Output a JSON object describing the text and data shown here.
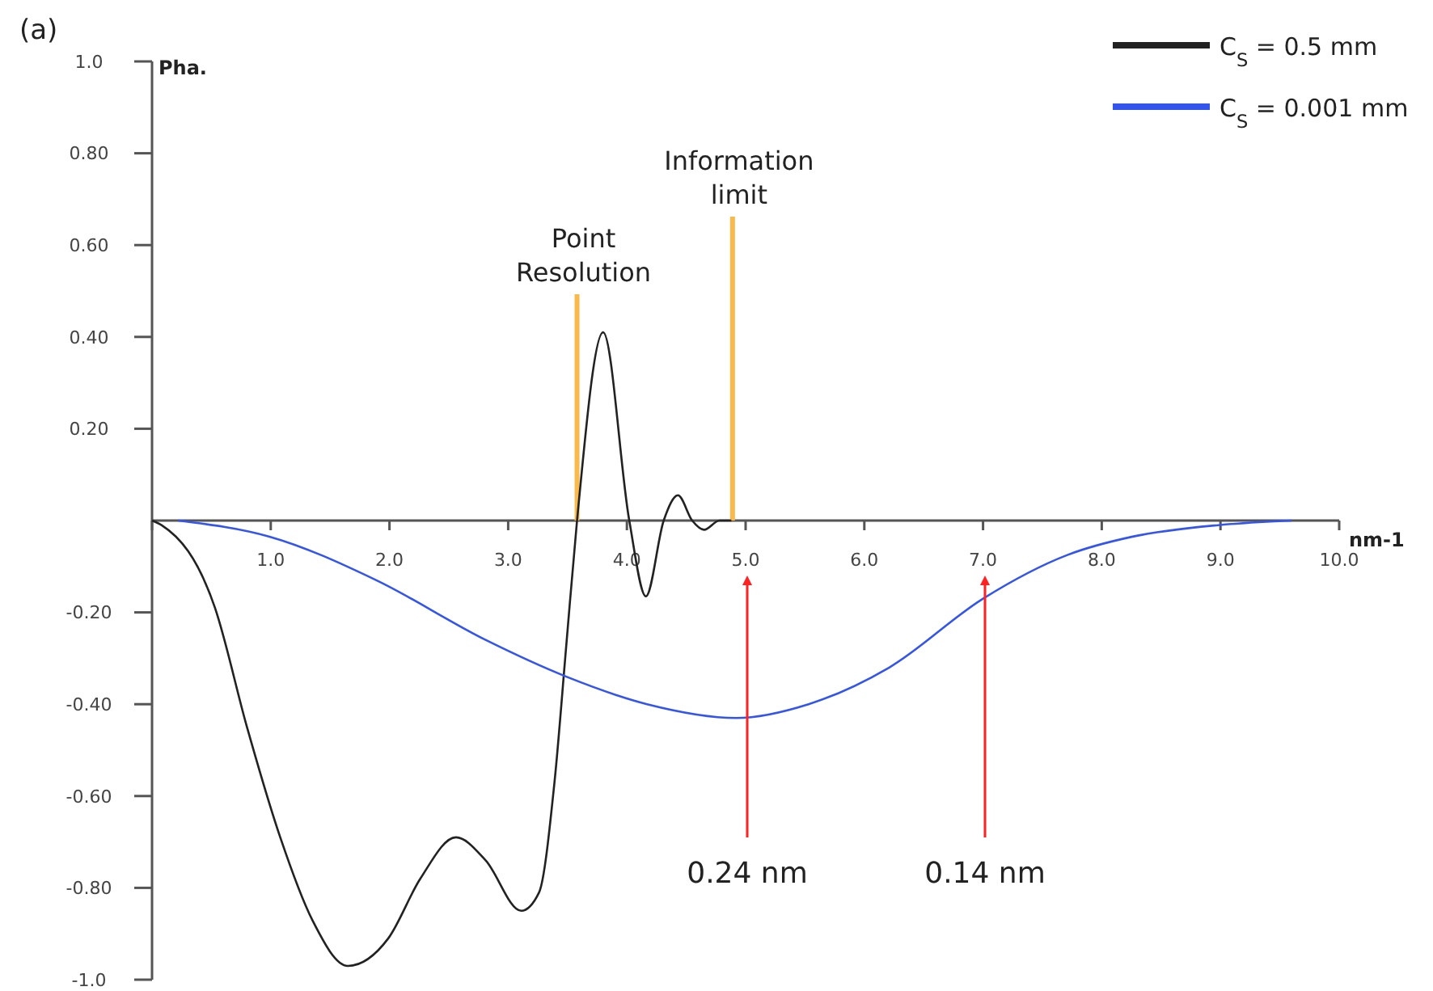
{
  "chart_data": {
    "type": "line",
    "xlabel": "nm-1",
    "ylabel": "Pha.",
    "xlim": [
      0,
      10
    ],
    "ylim": [
      -1,
      1
    ],
    "xticks": [
      {
        "value": 0,
        "label": null
      },
      {
        "value": 1,
        "label": "1.0"
      },
      {
        "value": 2,
        "label": "2.0"
      },
      {
        "value": 3,
        "label": "3.0"
      },
      {
        "value": 4,
        "label": "4.0"
      },
      {
        "value": 5,
        "label": "5.0"
      },
      {
        "value": 6,
        "label": "6.0"
      },
      {
        "value": 7,
        "label": "7.0"
      },
      {
        "value": 8,
        "label": "8.0"
      },
      {
        "value": 9,
        "label": "9.0"
      },
      {
        "value": 10,
        "label": "10.0"
      }
    ],
    "yticks": [
      {
        "value": -1,
        "label": "-1.0"
      },
      {
        "value": -0.8,
        "label": "-0.80"
      },
      {
        "value": -0.6,
        "label": "-0.60"
      },
      {
        "value": -0.4,
        "label": "-0.40"
      },
      {
        "value": -0.2,
        "label": "-0.20"
      },
      {
        "value": 0.2,
        "label": "0.20"
      },
      {
        "value": 0.4,
        "label": "0.40"
      },
      {
        "value": 0.6,
        "label": "0.60"
      },
      {
        "value": 0.8,
        "label": "0.80"
      },
      {
        "value": 1,
        "label": "1.0"
      }
    ],
    "grid": false,
    "marker": "none",
    "line_style": "solid",
    "legend": "top right",
    "series": [
      {
        "name": "C$_{S}$ = 0.5 mm",
        "color": "#222222",
        "x": [
          0,
          0.08,
          0.53,
          0.8,
          1.08,
          1.35,
          1.65,
          1.99,
          2.26,
          2.56,
          2.81,
          3.11,
          3.26,
          3.39,
          3.49,
          3.58,
          3.8,
          4.02,
          4.16,
          4.31,
          4.43,
          4.55,
          4.65,
          4.78,
          4.88
        ],
        "values": [
          0,
          -0.01,
          -0.19,
          -0.45,
          -0.69,
          -0.87,
          -0.97,
          -0.91,
          -0.78,
          -0.69,
          -0.74,
          -0.85,
          -0.81,
          -0.57,
          -0.27,
          0,
          0.41,
          0,
          -0.165,
          0,
          0.055,
          0,
          -0.02,
          0,
          0
        ]
      },
      {
        "name": "C$_{S}$ = 0.001 mm",
        "color": "#3355ee",
        "x": [
          0.22,
          0.99,
          1.89,
          2.81,
          3.49,
          4.17,
          4.92,
          5.53,
          6.21,
          7.0,
          7.71,
          8.26,
          8.98,
          9.6
        ],
        "values": [
          0,
          -0.035,
          -0.13,
          -0.26,
          -0.34,
          -0.4,
          -0.43,
          -0.4,
          -0.32,
          -0.17,
          -0.075,
          -0.035,
          -0.01,
          0
        ]
      }
    ],
    "ref_lines": [
      {
        "axis": "x",
        "value": 3.58,
        "label": "Point\nResolution",
        "color": "#f9b94b"
      },
      {
        "axis": "x",
        "value": 4.89,
        "label": "Information\nlimit",
        "color": "#f9b94b"
      }
    ],
    "annotations": [
      "(a)",
      "0.24 nm",
      "0.14 nm"
    ]
  }
}
